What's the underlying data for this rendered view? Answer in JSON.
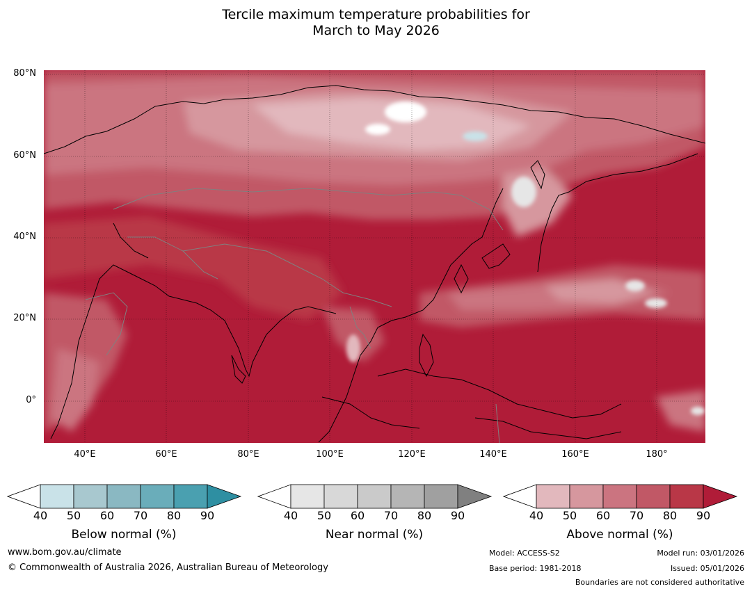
{
  "title_line1": "Tercile maximum temperature probabilities for",
  "title_line2": "March to May 2026",
  "lat_labels": [
    "80°N",
    "60°N",
    "40°N",
    "20°N",
    "0°"
  ],
  "lon_labels": [
    "40°E",
    "60°E",
    "80°E",
    "100°E",
    "120°E",
    "140°E",
    "160°E",
    "180°"
  ],
  "colorbars": [
    {
      "label": "Below normal (%)",
      "ticks": [
        "40",
        "50",
        "60",
        "70",
        "80",
        "90"
      ],
      "colors": [
        "#ffffff",
        "#c9e2e8",
        "#a8c8cf",
        "#8ab8c2",
        "#6aadba",
        "#4aa0b0",
        "#2e8fa2"
      ]
    },
    {
      "label": "Near normal (%)",
      "ticks": [
        "40",
        "50",
        "60",
        "70",
        "80",
        "90"
      ],
      "colors": [
        "#ffffff",
        "#e6e6e6",
        "#d8d8d8",
        "#cacaca",
        "#b5b5b5",
        "#a0a0a0",
        "#808080"
      ]
    },
    {
      "label": "Above normal (%)",
      "ticks": [
        "40",
        "50",
        "60",
        "70",
        "80",
        "90"
      ],
      "colors": [
        "#ffffff",
        "#e2b8bd",
        "#d6979e",
        "#cb7480",
        "#c15866",
        "#b93747",
        "#b01c38"
      ]
    }
  ],
  "footer": {
    "url": "www.bom.gov.au/climate",
    "copyright": "© Commonwealth of Australia 2026, Australian Bureau of Meteorology",
    "model": "Model: ACCESS-S2",
    "base_period": "Base period: 1981-2018",
    "model_run": "Model run: 03/01/2026",
    "issued": "Issued: 05/01/2026",
    "disclaimer": "Boundaries are not considered authoritative"
  }
}
